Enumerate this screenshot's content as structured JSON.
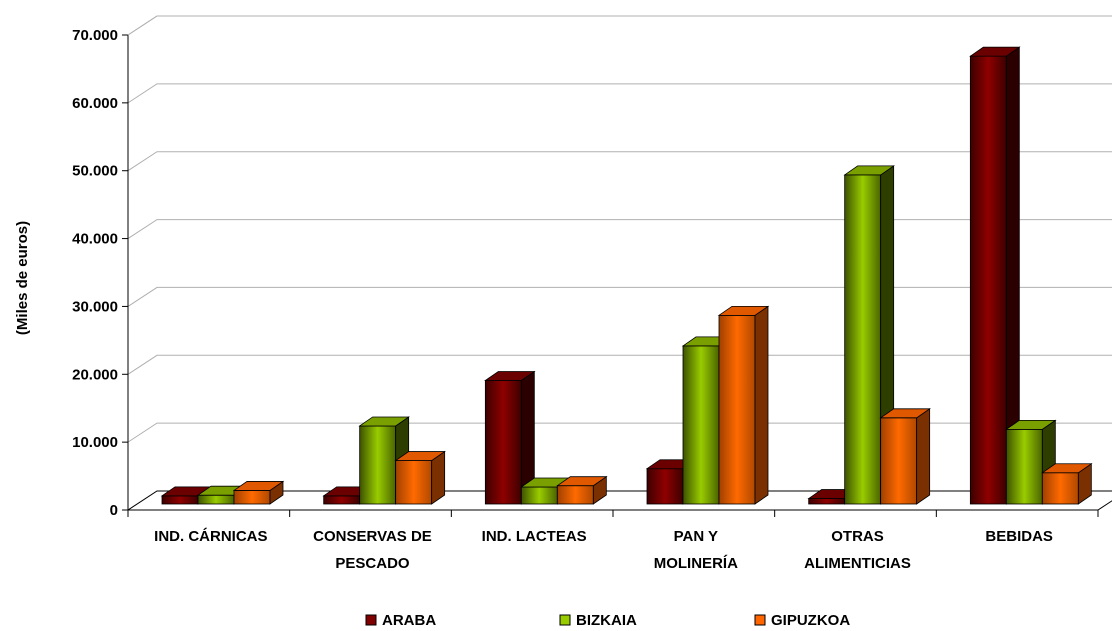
{
  "chart_data": {
    "type": "bar",
    "title": "",
    "xlabel": "",
    "ylabel": "(Miles de euros)",
    "ylim": [
      0,
      70000
    ],
    "yticks": [
      0,
      10000,
      20000,
      30000,
      40000,
      50000,
      60000,
      70000
    ],
    "ytick_labels": [
      "0",
      "10.000",
      "20.000",
      "30.000",
      "40.000",
      "50.000",
      "60.000",
      "70.000"
    ],
    "categories": [
      [
        "IND. CÁRNICAS"
      ],
      [
        "CONSERVAS DE",
        "PESCADO"
      ],
      [
        "IND. LACTEAS"
      ],
      [
        "PAN Y",
        "MOLINERÍA"
      ],
      [
        "OTRAS",
        "ALIMENTICIAS"
      ],
      [
        "BEBIDAS"
      ]
    ],
    "series": [
      {
        "name": "ARABA",
        "color": "#800000",
        "values": [
          1200,
          1200,
          18200,
          5200,
          800,
          66000
        ]
      },
      {
        "name": "BIZKAIA",
        "color": "#99cc00",
        "values": [
          1300,
          11500,
          2500,
          23300,
          48500,
          11000
        ]
      },
      {
        "name": "GIPUZKOA",
        "color": "#ff6600",
        "values": [
          2000,
          6400,
          2700,
          27800,
          12700,
          4600
        ]
      }
    ],
    "grid": true,
    "legend_position": "bottom"
  }
}
